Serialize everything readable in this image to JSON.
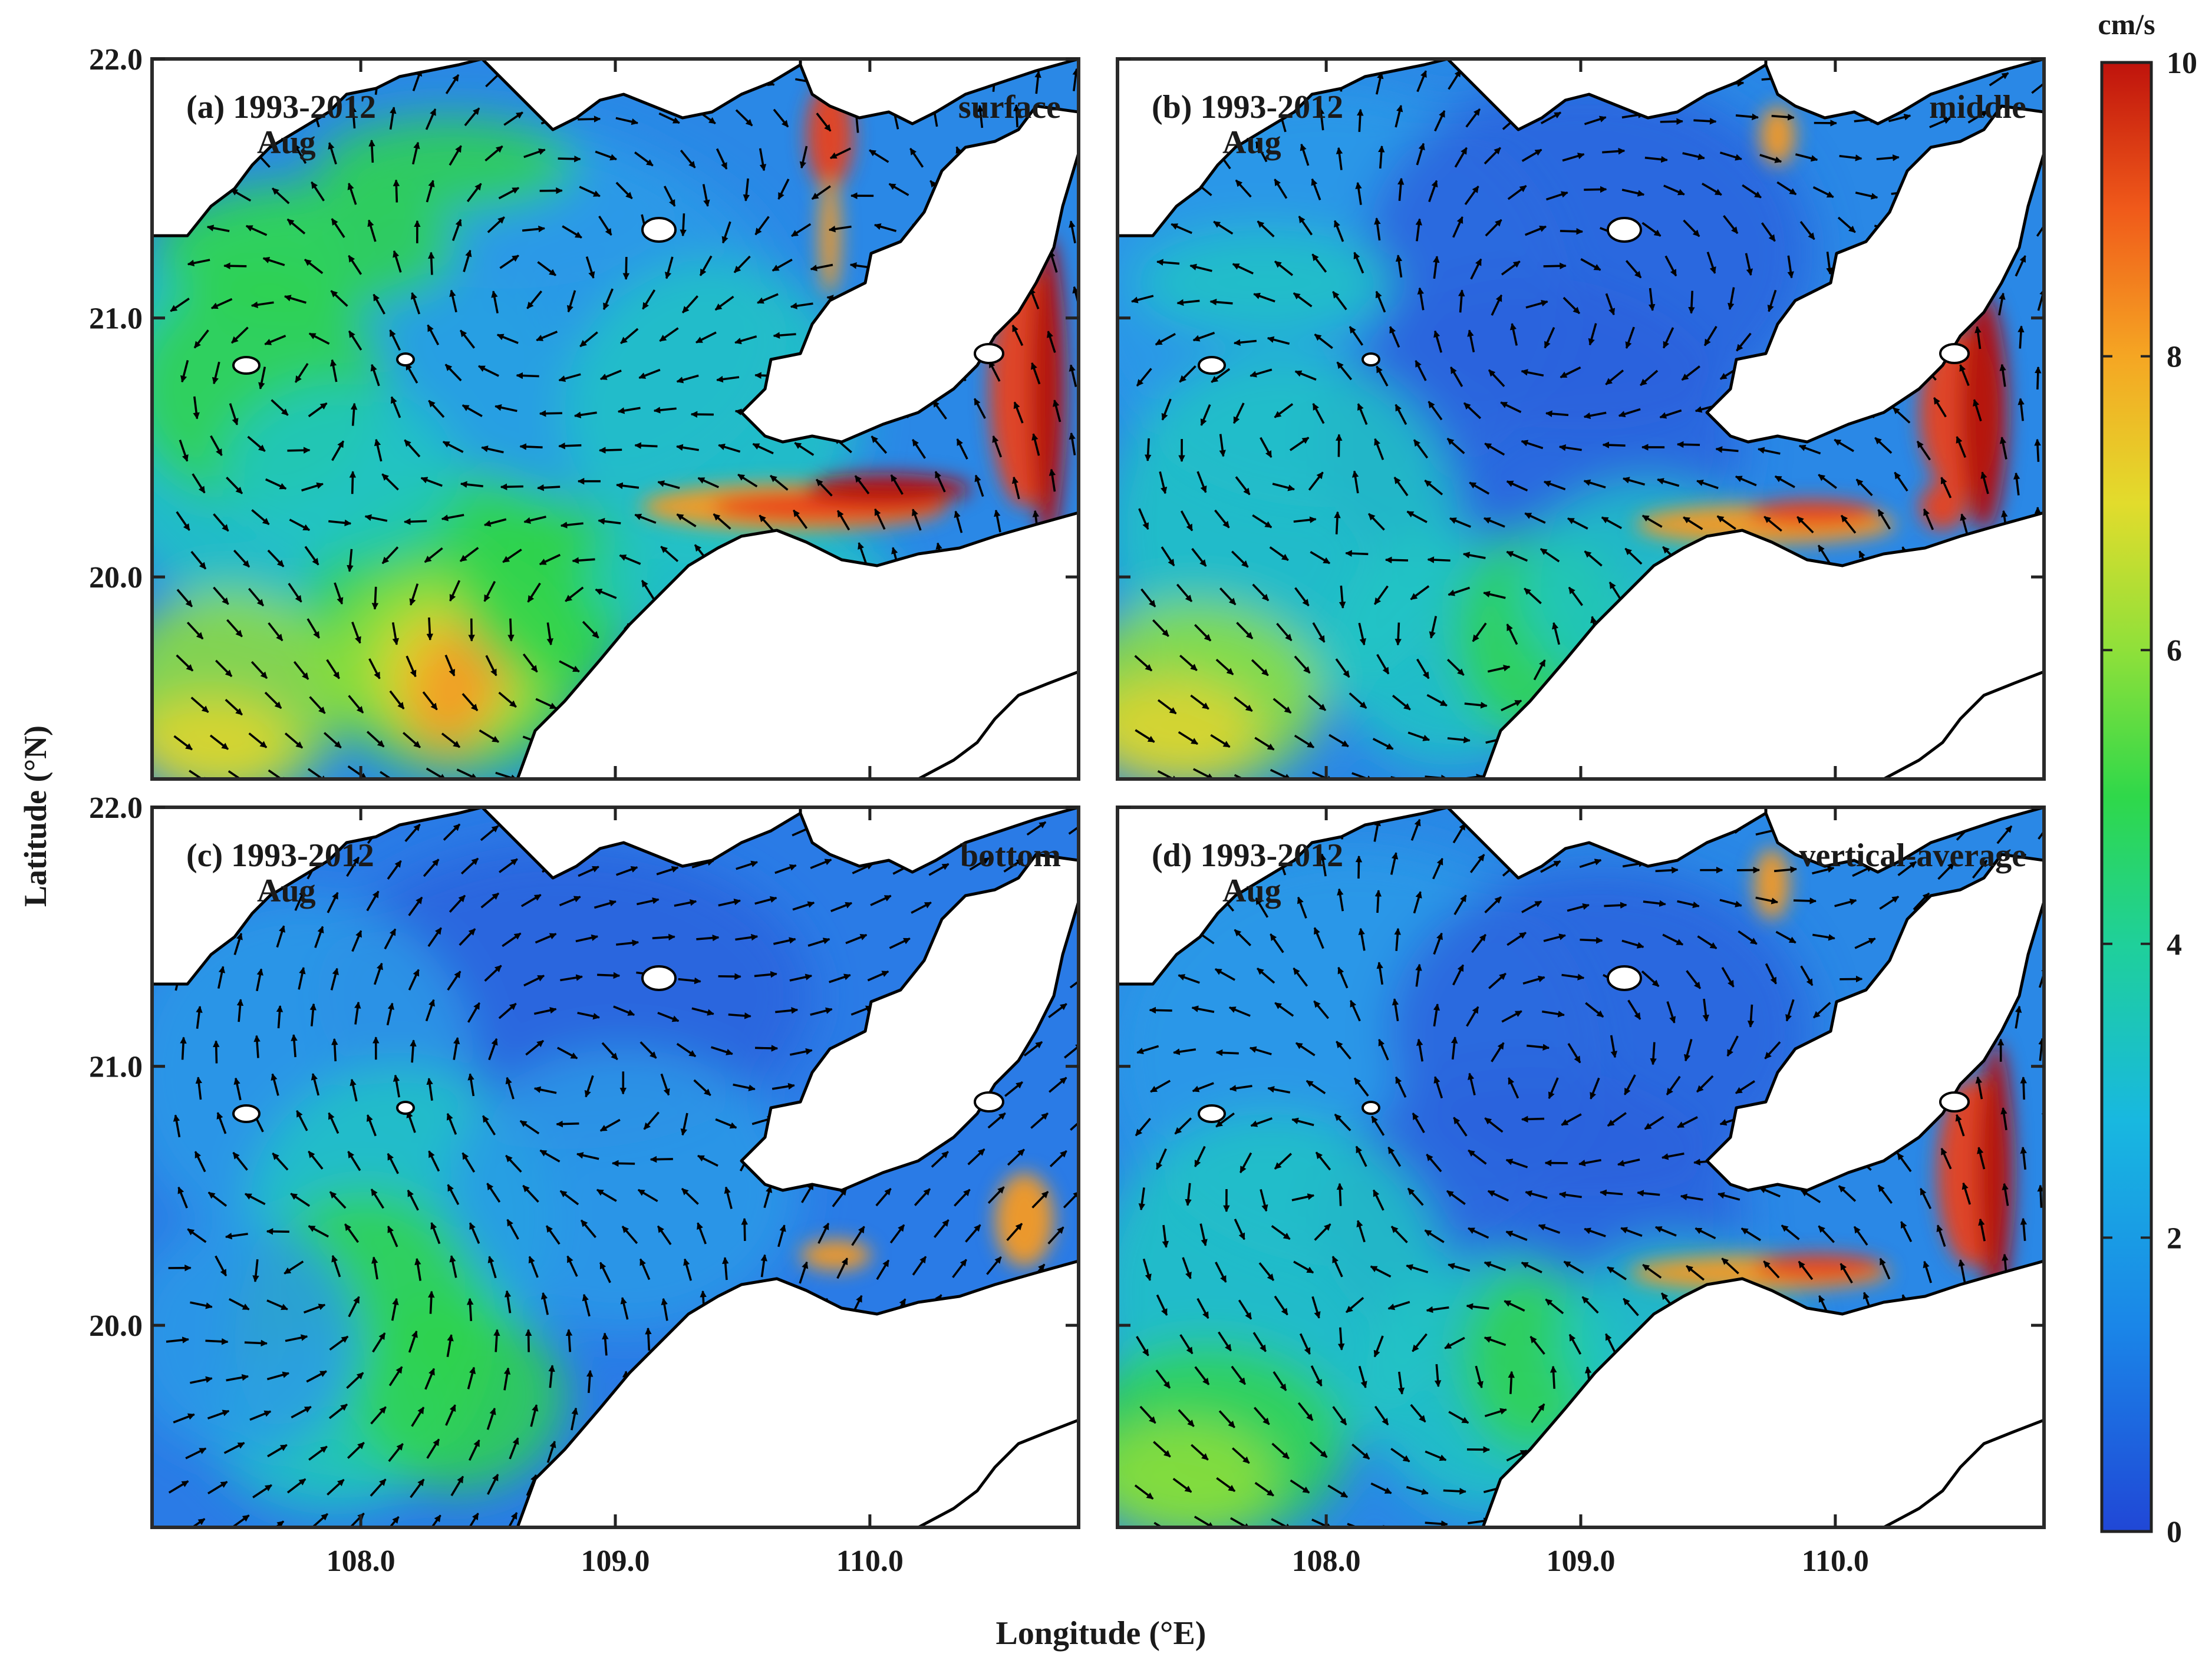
{
  "figure": {
    "xlabel": "Longitude (°E)",
    "ylabel": "Latitude (°N)",
    "x_ticks": [
      "108.0",
      "109.0",
      "110.0"
    ],
    "y_ticks": [
      "22.0",
      "21.0",
      "20.0"
    ],
    "colorbar": {
      "unit": "cm/s",
      "ticks": [
        "0",
        "2",
        "4",
        "6",
        "8",
        "10"
      ],
      "range": [
        0,
        10
      ],
      "colormap": "jet",
      "colors": [
        "#1f4fd8",
        "#1e8fe8",
        "#24c3c9",
        "#2fd24a",
        "#a8e13a",
        "#f2c530",
        "#f47b1d",
        "#c11b0f"
      ]
    },
    "panels": [
      {
        "id": "a",
        "label": "(a) 1993-2012",
        "month": "Aug",
        "layer": "surface"
      },
      {
        "id": "b",
        "label": "(b) 1993-2012",
        "month": "Aug",
        "layer": "middle"
      },
      {
        "id": "c",
        "label": "(c) 1993-2012",
        "month": "Aug",
        "layer": "bottom"
      },
      {
        "id": "d",
        "label": "(d) 1993-2012",
        "month": "Aug",
        "layer": "vertical-average"
      }
    ],
    "extent": {
      "lon": [
        107.18,
        110.82
      ],
      "lat": [
        19.22,
        22.0
      ]
    }
  }
}
